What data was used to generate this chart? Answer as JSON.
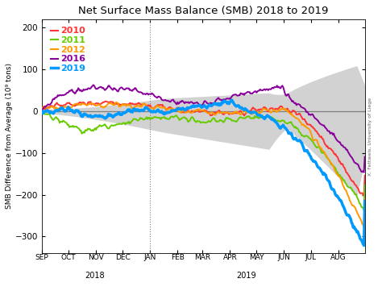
{
  "title": "Net Surface Mass Balance (SMB) 2018 to 2019",
  "ylabel": "SMB Difference from Average (10⁹ tons)",
  "ylim": [
    -340,
    220
  ],
  "yticks": [
    -300,
    -200,
    -100,
    0,
    100,
    200
  ],
  "colors": {
    "2010": "#ff3333",
    "2011": "#66cc00",
    "2012": "#ff9900",
    "2016": "#880099",
    "2019": "#0099ff"
  },
  "shade_color": "#c0c0c0",
  "background_color": "#ffffff",
  "credit": "X. Fettweis, University of Liege",
  "month_labels": [
    "SEP",
    "OCT",
    "NOV",
    "DEC",
    "JAN",
    "FEB",
    "MAR",
    "APR",
    "MAY",
    "JUN",
    "JUL",
    "AUG"
  ],
  "month_days": [
    0,
    30,
    61,
    91,
    122,
    153,
    181,
    212,
    242,
    273,
    303,
    334
  ],
  "n_days": 365,
  "jan1_day": 122
}
